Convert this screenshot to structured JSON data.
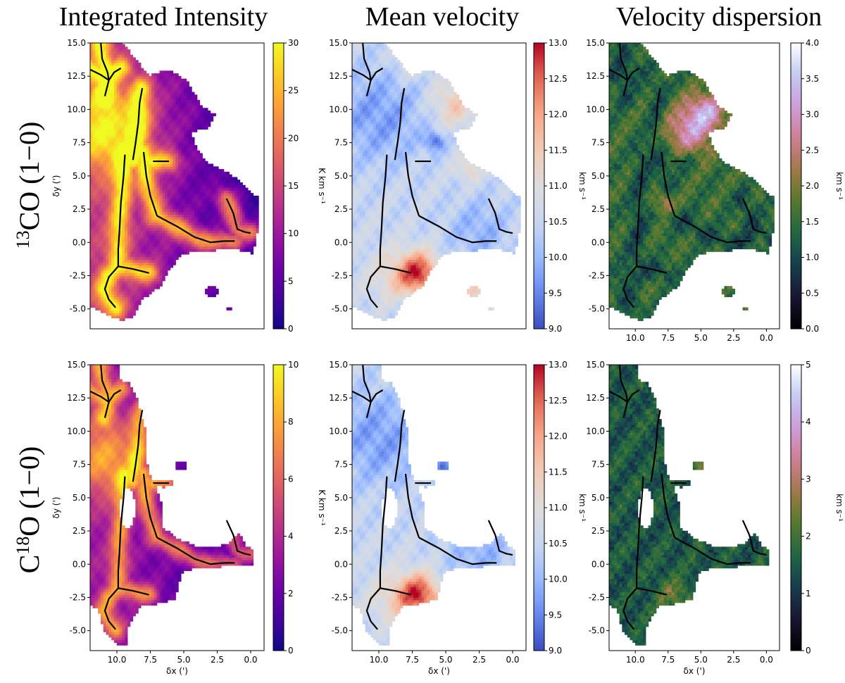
{
  "figure": {
    "column_titles": [
      "Integrated Intensity",
      "Mean velocity",
      "Velocity dispersion"
    ],
    "row_labels": [
      {
        "pre": "",
        "sup": "13",
        "post": "CO (1−0)"
      },
      {
        "pre": "C",
        "sup": "18",
        "post": "O (1−0)"
      }
    ]
  },
  "chart_data": [
    {
      "type": "heatmap",
      "name": "13co-integrated-intensity",
      "row": 0,
      "col": 0,
      "xlabel": "δx (')",
      "ylabel": "δy (')",
      "show_xlabel": false,
      "show_ylabel": true,
      "xlim": [
        12.0,
        -1.0
      ],
      "ylim": [
        -6.5,
        15.0
      ],
      "xticks": [],
      "yticks": [
        15.0,
        12.5,
        10.0,
        7.5,
        5.0,
        2.5,
        0.0,
        -2.5,
        -5.0
      ],
      "colorbar": {
        "cmap": "plasma",
        "label": "K km s⁻¹",
        "vmin": 0,
        "vmax": 30,
        "ticks": [
          0,
          5,
          10,
          15,
          20,
          25,
          30
        ],
        "decimals": 0
      }
    },
    {
      "type": "heatmap",
      "name": "13co-mean-velocity",
      "row": 0,
      "col": 1,
      "xlabel": "δx (')",
      "ylabel": "δy (')",
      "show_xlabel": false,
      "show_ylabel": false,
      "xlim": [
        12.0,
        -1.0
      ],
      "ylim": [
        -6.5,
        15.0
      ],
      "xticks": [],
      "yticks": [
        15.0,
        12.5,
        10.0,
        7.5,
        5.0,
        2.5,
        0.0,
        -2.5,
        -5.0
      ],
      "colorbar": {
        "cmap": "coolwarm",
        "label": "km s⁻¹",
        "vmin": 9.0,
        "vmax": 13.0,
        "ticks": [
          9.0,
          9.5,
          10.0,
          10.5,
          11.0,
          11.5,
          12.0,
          12.5,
          13.0
        ],
        "decimals": 1
      }
    },
    {
      "type": "heatmap",
      "name": "13co-velocity-dispersion",
      "row": 0,
      "col": 2,
      "xlabel": "δx (')",
      "ylabel": "δy (')",
      "show_xlabel": false,
      "show_ylabel": false,
      "xlim": [
        12.0,
        -1.0
      ],
      "ylim": [
        -6.5,
        15.0
      ],
      "xticks": [
        10.0,
        7.5,
        5.0,
        2.5,
        0.0
      ],
      "yticks": [
        15.0,
        12.5,
        10.0,
        7.5,
        5.0,
        2.5,
        0.0,
        -2.5,
        -5.0
      ],
      "colorbar": {
        "cmap": "cubehelix",
        "label": "km s⁻¹",
        "vmin": 0.0,
        "vmax": 4.0,
        "ticks": [
          0.0,
          0.5,
          1.0,
          1.5,
          2.0,
          2.5,
          3.0,
          3.5,
          4.0
        ],
        "decimals": 1
      }
    },
    {
      "type": "heatmap",
      "name": "c18o-integrated-intensity",
      "row": 1,
      "col": 0,
      "xlabel": "δx (')",
      "ylabel": "δy (')",
      "show_xlabel": true,
      "show_ylabel": true,
      "xlim": [
        12.0,
        -1.0
      ],
      "ylim": [
        -6.5,
        15.0
      ],
      "xticks": [
        10.0,
        7.5,
        5.0,
        2.5,
        0.0
      ],
      "yticks": [
        15.0,
        12.5,
        10.0,
        7.5,
        5.0,
        2.5,
        0.0,
        -2.5,
        -5.0
      ],
      "colorbar": {
        "cmap": "plasma",
        "label": "K km s⁻¹",
        "vmin": 0,
        "vmax": 10,
        "ticks": [
          0,
          2,
          4,
          6,
          8,
          10
        ],
        "decimals": 0
      }
    },
    {
      "type": "heatmap",
      "name": "c18o-mean-velocity",
      "row": 1,
      "col": 1,
      "xlabel": "δx (')",
      "ylabel": "δy (')",
      "show_xlabel": true,
      "show_ylabel": false,
      "xlim": [
        12.0,
        -1.0
      ],
      "ylim": [
        -6.5,
        15.0
      ],
      "xticks": [
        10.0,
        7.5,
        5.0,
        2.5,
        0.0
      ],
      "yticks": [
        15.0,
        12.5,
        10.0,
        7.5,
        5.0,
        2.5,
        0.0,
        -2.5,
        -5.0
      ],
      "colorbar": {
        "cmap": "coolwarm",
        "label": "km s⁻¹",
        "vmin": 9.0,
        "vmax": 13.0,
        "ticks": [
          9.0,
          9.5,
          10.0,
          10.5,
          11.0,
          11.5,
          12.0,
          12.5,
          13.0
        ],
        "decimals": 1
      }
    },
    {
      "type": "heatmap",
      "name": "c18o-velocity-dispersion",
      "row": 1,
      "col": 2,
      "xlabel": "δx (')",
      "ylabel": "δy (')",
      "show_xlabel": true,
      "show_ylabel": false,
      "xlim": [
        12.0,
        -1.0
      ],
      "ylim": [
        -6.5,
        15.0
      ],
      "xticks": [
        10.0,
        7.5,
        5.0,
        2.5,
        0.0
      ],
      "yticks": [
        15.0,
        12.5,
        10.0,
        7.5,
        5.0,
        2.5,
        0.0,
        -2.5,
        -5.0
      ],
      "colorbar": {
        "cmap": "cubehelix",
        "label": "km s⁻¹",
        "vmin": 0,
        "vmax": 5,
        "ticks": [
          0,
          1,
          2,
          3,
          4,
          5
        ],
        "decimals": 0
      }
    }
  ],
  "filament_skeleton": {
    "segments": [
      [
        [
          11.2,
          15.0
        ],
        [
          11.1,
          13.8
        ],
        [
          10.7,
          12.8
        ],
        [
          10.6,
          12.2
        ]
      ],
      [
        [
          12.0,
          13.0
        ],
        [
          11.2,
          12.6
        ],
        [
          10.6,
          12.2
        ]
      ],
      [
        [
          10.6,
          12.2
        ],
        [
          10.2,
          12.8
        ],
        [
          9.7,
          13.1
        ]
      ],
      [
        [
          10.6,
          12.2
        ],
        [
          10.9,
          11.0
        ]
      ],
      [
        [
          8.1,
          11.6
        ],
        [
          8.3,
          10.5
        ],
        [
          8.4,
          9.0
        ],
        [
          8.6,
          7.5
        ],
        [
          8.8,
          6.2
        ]
      ],
      [
        [
          9.4,
          6.6
        ],
        [
          9.5,
          5.0
        ],
        [
          9.7,
          3.0
        ],
        [
          9.8,
          1.0
        ],
        [
          9.9,
          -0.5
        ],
        [
          9.9,
          -1.8
        ]
      ],
      [
        [
          8.0,
          6.8
        ],
        [
          7.8,
          5.0
        ],
        [
          7.5,
          3.5
        ],
        [
          7.0,
          2.0
        ]
      ],
      [
        [
          7.3,
          6.1
        ],
        [
          6.1,
          6.1
        ]
      ],
      [
        [
          7.0,
          2.0
        ],
        [
          5.5,
          1.2
        ],
        [
          4.2,
          0.4
        ],
        [
          3.0,
          0.0
        ],
        [
          2.0,
          0.1
        ],
        [
          1.2,
          0.1
        ]
      ],
      [
        [
          1.8,
          3.3
        ],
        [
          1.3,
          2.2
        ],
        [
          1.0,
          1.0
        ],
        [
          0.5,
          0.8
        ],
        [
          0.0,
          0.7
        ]
      ],
      [
        [
          9.9,
          -1.8
        ],
        [
          8.8,
          -2.0
        ],
        [
          7.6,
          -2.3
        ]
      ],
      [
        [
          9.9,
          -1.8
        ],
        [
          10.6,
          -2.6
        ],
        [
          10.9,
          -3.5
        ],
        [
          10.6,
          -4.3
        ],
        [
          10.1,
          -4.9
        ]
      ]
    ]
  }
}
